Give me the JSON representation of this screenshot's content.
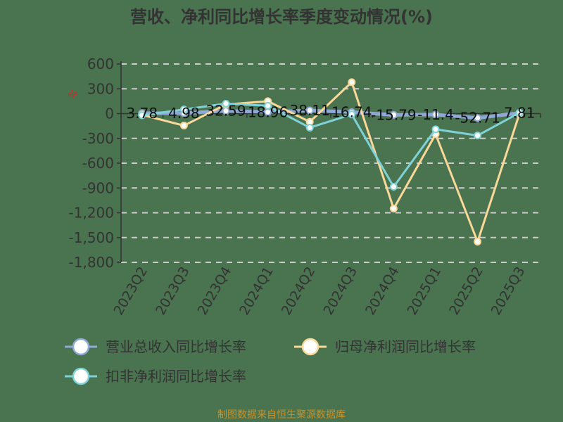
{
  "title": "营收、净利同比增长率季度变动情况(%)",
  "unit_label": "%",
  "source": "制图数据来自恒生聚源数据库",
  "colors": {
    "background": "#4a7350",
    "revenue": "#8fa8d8",
    "net_profit": "#f9d89a",
    "deducted_net_profit": "#7fd3d8",
    "grid": "#cccccc",
    "axis": "#333333"
  },
  "legend": [
    {
      "label": "营业总收入同比增长率",
      "color": "#8fa8d8"
    },
    {
      "label": "归母净利润同比增长率",
      "color": "#f9d89a"
    },
    {
      "label": "扣非净利润同比增长率",
      "color": "#7fd3d8"
    }
  ],
  "y_ticks": [
    "600",
    "300",
    "0",
    "-300",
    "-600",
    "-900",
    "-1,200",
    "-1,500",
    "-1,800"
  ],
  "chart_data": {
    "type": "line",
    "title": "营收、净利同比增长率季度变动情况(%)",
    "xlabel": "",
    "ylabel": "%",
    "ylim": [
      -1800,
      600
    ],
    "grid": true,
    "legend_position": "bottom",
    "categories": [
      "2023Q2",
      "2023Q3",
      "2023Q4",
      "2024Q1",
      "2024Q2",
      "2024Q3",
      "2024Q4",
      "2025Q1",
      "2025Q2",
      "2025Q3"
    ],
    "series": [
      {
        "name": "营业总收入同比增长率",
        "values": [
          3.78,
          4.98,
          32.59,
          18.96,
          38.11,
          16.74,
          -15.79,
          -11.4,
          -52.71,
          7.81
        ],
        "labels": [
          "3.78",
          "4.98",
          "32.59",
          "18.96",
          "38.11",
          "16.74",
          "-15.79",
          "-11.4",
          "-52.71",
          "7.81"
        ]
      },
      {
        "name": "归母净利润同比增长率",
        "values": [
          -15,
          -145,
          110,
          150,
          -100,
          380,
          -1150,
          -250,
          -1550,
          0
        ]
      },
      {
        "name": "扣非净利润同比增长率",
        "values": [
          -20,
          50,
          120,
          95,
          -170,
          -10,
          -885,
          -190,
          -265,
          10
        ]
      }
    ]
  }
}
